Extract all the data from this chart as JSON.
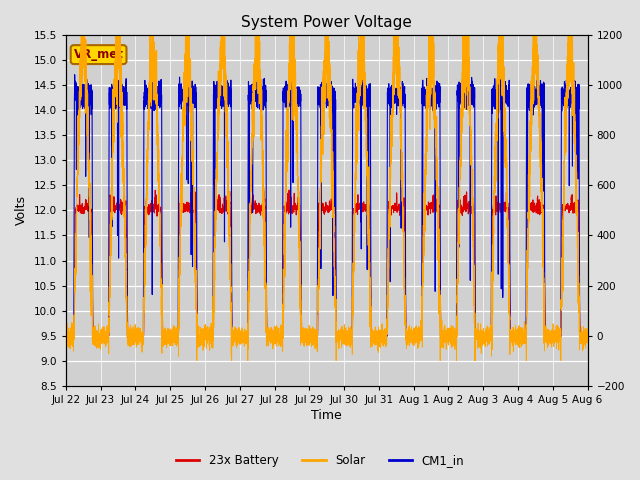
{
  "title": "System Power Voltage",
  "xlabel": "Time",
  "ylabel_left": "Volts",
  "ylim_left": [
    8.5,
    15.5
  ],
  "ylim_right": [
    -200,
    1200
  ],
  "fig_bg": "#e0e0e0",
  "plot_bg": "#d0d0d0",
  "legend_entries": [
    "23x Battery",
    "Solar",
    "CM1_in"
  ],
  "legend_colors": [
    "#dd0000",
    "#ffa500",
    "#0000cc"
  ],
  "vr_met_label": "VR_met",
  "left_yticks": [
    8.5,
    9.0,
    9.5,
    10.0,
    10.5,
    11.0,
    11.5,
    12.0,
    12.5,
    13.0,
    13.5,
    14.0,
    14.5,
    15.0,
    15.5
  ],
  "right_yticks": [
    -200,
    0,
    200,
    400,
    600,
    800,
    1000,
    1200
  ],
  "xtick_labels": [
    "Jul 22",
    "Jul 23",
    "Jul 24",
    "Jul 25",
    "Jul 26",
    "Jul 27",
    "Jul 28",
    "Jul 29",
    "Jul 30",
    "Jul 31",
    "Aug 1",
    "Aug 2",
    "Aug 3",
    "Aug 4",
    "Aug 5",
    "Aug 6"
  ]
}
